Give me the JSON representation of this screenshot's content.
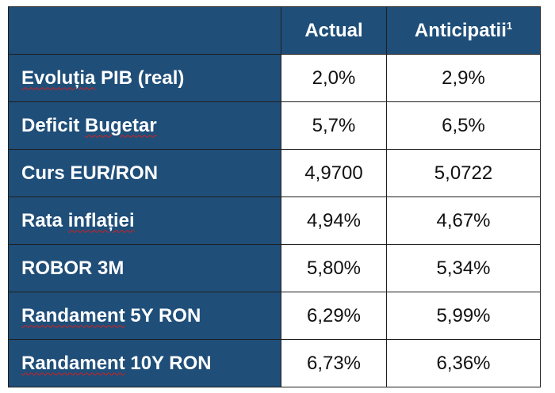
{
  "table": {
    "header": {
      "col0": "",
      "col1": "Actual",
      "col2": "Anticipatii",
      "col2_superscript": "1"
    },
    "rows": [
      {
        "label_main": "Evoluția",
        "label_rest": " PIB (real)",
        "actual": "2,0%",
        "anticipatii": "2,9%"
      },
      {
        "label_pre": "Deficit ",
        "label_main": "Bugetar",
        "actual": "5,7%",
        "anticipatii": "6,5%"
      },
      {
        "label_main": "Curs EUR/RON",
        "actual": "4,9700",
        "anticipatii": "5,0722"
      },
      {
        "label_pre": "Rata ",
        "label_main": "inflației",
        "actual": "4,94%",
        "anticipatii": "4,67%"
      },
      {
        "label_main": "ROBOR 3M",
        "actual": "5,80%",
        "anticipatii": "5,34%"
      },
      {
        "label_main": "Randament",
        "label_rest": " 5Y RON",
        "actual": "6,29%",
        "anticipatii": "5,99%"
      },
      {
        "label_main": "Randament",
        "label_rest": " 10Y RON",
        "actual": "6,73%",
        "anticipatii": "6,36%"
      }
    ]
  },
  "colors": {
    "header_bg": "#1f4e79",
    "cell_bg": "#ffffff",
    "spellcheck_underline": "#d21f1f"
  }
}
